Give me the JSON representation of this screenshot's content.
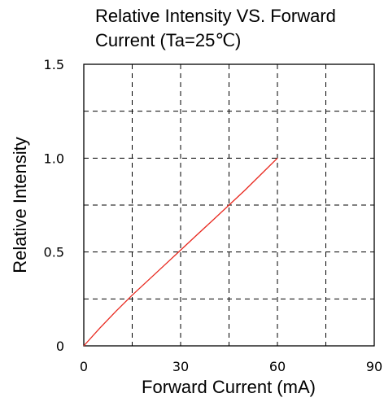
{
  "chart_data": {
    "type": "line",
    "title_line1": "Relative Intensity VS. Forward",
    "title_line2": "Current (Ta=25℃)",
    "xlabel": "Forward Current (mA)",
    "ylabel": "Relative Intensity",
    "xlim": [
      0,
      90
    ],
    "ylim": [
      0,
      1.5
    ],
    "x_ticks": [
      {
        "value": 0,
        "label": "0"
      },
      {
        "value": 30,
        "label": "30"
      },
      {
        "value": 60,
        "label": "60"
      },
      {
        "value": 90,
        "label": "90"
      }
    ],
    "y_ticks": [
      {
        "value": 0,
        "label": "0"
      },
      {
        "value": 0.5,
        "label": "0.5"
      },
      {
        "value": 1.0,
        "label": "1.0"
      },
      {
        "value": 1.5,
        "label": "1.5"
      }
    ],
    "x_grid": [
      15,
      30,
      45,
      60,
      75
    ],
    "y_grid": [
      0.25,
      0.5,
      0.75,
      1.0,
      1.25
    ],
    "grid": true,
    "series": [
      {
        "color": "#e8281e",
        "x": [
          0,
          5,
          10,
          15,
          20,
          25,
          30,
          35,
          40,
          45,
          50,
          55,
          60
        ],
        "y": [
          0,
          0.095,
          0.185,
          0.27,
          0.35,
          0.43,
          0.51,
          0.59,
          0.67,
          0.75,
          0.83,
          0.915,
          1.0
        ]
      }
    ]
  }
}
